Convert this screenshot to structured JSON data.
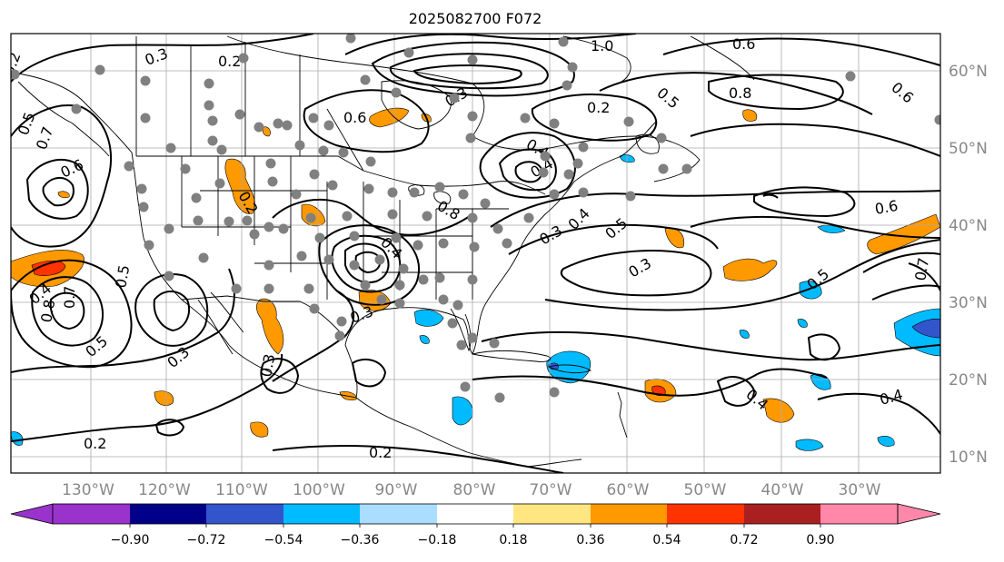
{
  "title": "2025082700 F072",
  "map": {
    "lon_labels": [
      "130°W",
      "120°W",
      "110°W",
      "100°W",
      "90°W",
      "80°W",
      "70°W",
      "60°W",
      "50°W",
      "40°W",
      "30°W"
    ],
    "lat_labels": [
      "60°N",
      "50°N",
      "40°N",
      "30°N",
      "20°N",
      "10°N"
    ],
    "axis_label_color": "#888888",
    "grid_color": "#999999"
  },
  "contour_labels": [
    "0.3",
    "0.2",
    "0.5",
    "0.7",
    "0.6",
    "0.4",
    "0.2",
    "0.8",
    "0.7",
    "1.0",
    "0.6",
    "0.5",
    "0.8",
    "0.6",
    "0.2",
    "0.4",
    "0.5",
    "0.3",
    "0.2",
    "0.4",
    "0.3",
    "0.5",
    "0.6",
    "0.3",
    "0.4",
    "0.5",
    "0.4",
    "0.6",
    "0.8",
    "0.3",
    "0.4",
    "0.3",
    "0.2",
    "0.2",
    "0.3",
    "0.4",
    "0.5",
    "0.7"
  ],
  "colorbar": {
    "ticks": [
      "−0.90",
      "−0.72",
      "−0.54",
      "−0.36",
      "−0.18",
      "0.18",
      "0.36",
      "0.54",
      "0.72",
      "0.90"
    ],
    "colors": [
      "#9933cc",
      "#000088",
      "#3355cc",
      "#00bbff",
      "#aaddff",
      "#ffffff",
      "#ffe680",
      "#ff9900",
      "#ff3300",
      "#aa1f1f",
      "#ff88aa"
    ]
  },
  "station_color": "#808080"
}
